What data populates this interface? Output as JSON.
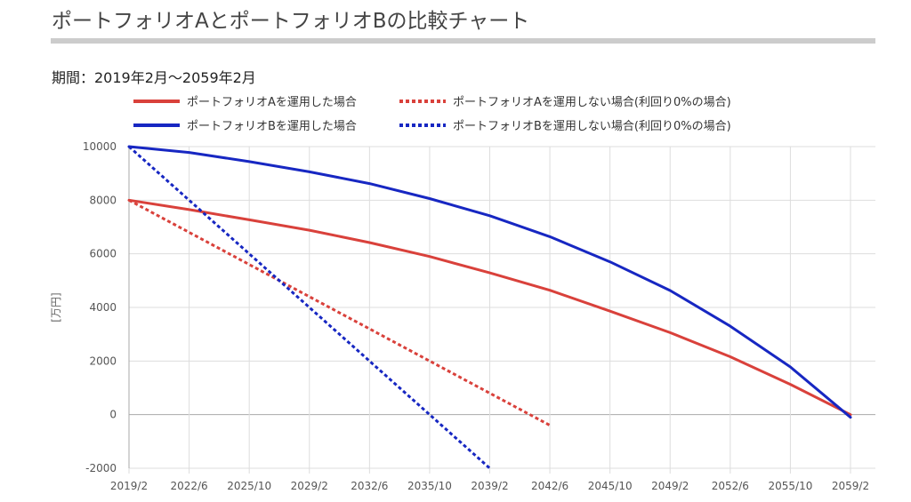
{
  "header": {
    "title": "ポートフォリオAとポートフォリオBの比較チャート",
    "period": "期間：2019年2月〜2059年2月"
  },
  "colors": {
    "red": "#d9413b",
    "blue": "#1727c2",
    "grid": "#dddddd",
    "axis": "#999999"
  },
  "chart_data": {
    "type": "line",
    "ylabel": "[万円]",
    "ylim": [
      -2000,
      10000
    ],
    "yticks": [
      10000,
      8000,
      6000,
      4000,
      2000,
      0,
      -2000
    ],
    "x_tick_labels": [
      "2019/2",
      "2022/6",
      "2025/10",
      "2029/2",
      "2032/6",
      "2035/10",
      "2039/2",
      "2042/6",
      "2045/10",
      "2049/2",
      "2052/6",
      "2055/10",
      "2059/2"
    ],
    "x_unit": "months from 2019/2 (tick every 40 months)",
    "xlim": [
      0,
      480
    ],
    "grid": true,
    "legend_position": "top",
    "series": [
      {
        "name": "ポートフォリオAを運用した場合",
        "color": "#d9413b",
        "dashed": false,
        "x": [
          0,
          40,
          80,
          120,
          160,
          200,
          240,
          280,
          320,
          360,
          400,
          440,
          480
        ],
        "values": [
          8000,
          7650,
          7270,
          6880,
          6420,
          5900,
          5290,
          4640,
          3860,
          3060,
          2160,
          1130,
          0
        ]
      },
      {
        "name": "ポートフォリオAを運用しない場合(利回り0%の場合)",
        "color": "#d9413b",
        "dashed": true,
        "x": [
          0,
          280
        ],
        "values": [
          8000,
          -400
        ]
      },
      {
        "name": "ポートフォリオBを運用した場合",
        "color": "#1727c2",
        "dashed": false,
        "x": [
          0,
          40,
          80,
          120,
          160,
          200,
          240,
          280,
          320,
          360,
          400,
          440,
          480
        ],
        "values": [
          10000,
          9780,
          9440,
          9060,
          8620,
          8060,
          7420,
          6640,
          5700,
          4630,
          3300,
          1780,
          -100
        ]
      },
      {
        "name": "ポートフォリオBを運用しない場合(利回り0%の場合)",
        "color": "#1727c2",
        "dashed": true,
        "x": [
          0,
          240
        ],
        "values": [
          10000,
          -2000
        ]
      }
    ]
  }
}
